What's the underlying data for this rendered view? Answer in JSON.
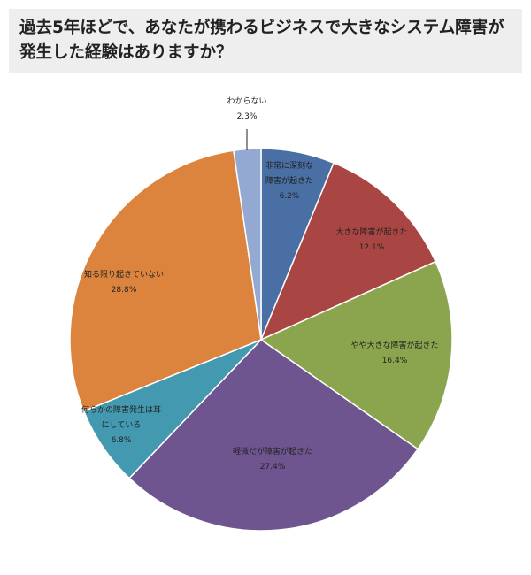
{
  "chart_data": {
    "type": "pie",
    "title": "過去5年ほどで、あなたが携わるビジネスで大きなシステム障害が発生した経験はありますか？",
    "categories": [
      "非常に深刻な障害が起きた",
      "大きな障害が起きた",
      "やや大きな障害が起きた",
      "軽微だが障害が起きた",
      "何らかの障害発生は耳にしている",
      "知る限り起きていない",
      "わからない"
    ],
    "values": [
      6.2,
      12.1,
      16.4,
      27.4,
      6.8,
      28.8,
      2.3
    ],
    "labels": [
      [
        "非常に深刻な",
        "障害が起きた",
        "6.2%"
      ],
      [
        "大きな障害が起きた",
        "12.1%"
      ],
      [
        "やや大きな障害が起きた",
        "16.4%"
      ],
      [
        "軽微だが障害が起きた",
        "27.4%"
      ],
      [
        "何らかの障害発生は耳",
        "にしている",
        "6.8%"
      ],
      [
        "知る限り起きていない",
        "28.8%"
      ],
      [
        "わからない",
        "2.3%"
      ]
    ],
    "colors": [
      "#4a6fa5",
      "#a94643",
      "#8ba54e",
      "#6f5590",
      "#4399b0",
      "#dc843e",
      "#93a9d1"
    ],
    "start_angle": "12 o'clock",
    "direction": "clockwise"
  }
}
